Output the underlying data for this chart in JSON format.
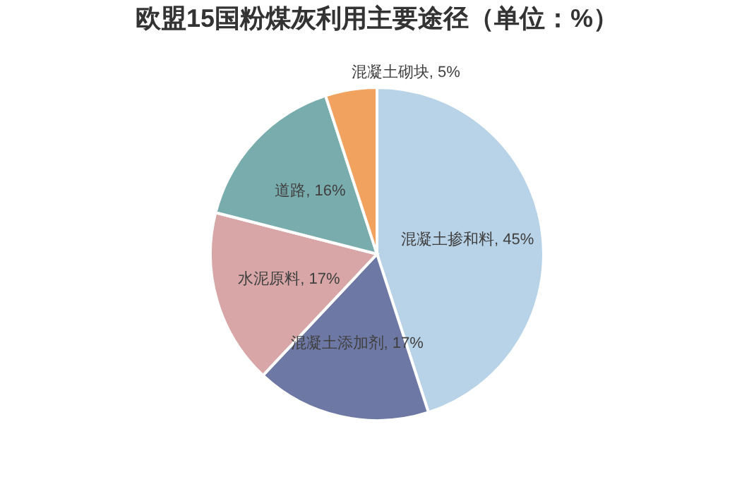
{
  "chart_data": {
    "type": "pie",
    "title": "欧盟15国粉煤灰利用主要途径（单位：%）",
    "categories": [
      "混凝土掺和料",
      "混凝土添加剂",
      "水泥原料",
      "道路",
      "混凝土砌块"
    ],
    "values": [
      45,
      17,
      17,
      16,
      5
    ],
    "colors": [
      "#b8d3e8",
      "#6d78a5",
      "#d8a6a6",
      "#79acad",
      "#f0a25e"
    ],
    "value_labels": [
      "45%",
      "17%",
      "17%",
      "16%",
      "5%"
    ],
    "legend": false
  }
}
